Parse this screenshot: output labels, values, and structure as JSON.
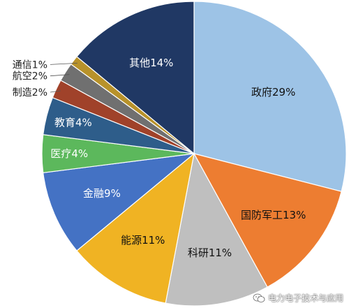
{
  "chart_data": {
    "type": "pie",
    "slices": [
      {
        "label": "政府29%",
        "value": 29,
        "color": "#9dc3e6",
        "text": "dark"
      },
      {
        "label": "国防军工13%",
        "value": 13,
        "color": "#ed7d31",
        "text": "dark"
      },
      {
        "label": "科研11%",
        "value": 11,
        "color": "#bfbfbf",
        "text": "dark"
      },
      {
        "label": "能源11%",
        "value": 11,
        "color": "#f0b323",
        "text": "dark"
      },
      {
        "label": "金融9%",
        "value": 9,
        "color": "#4472c4",
        "text": "light"
      },
      {
        "label": "医疗4%",
        "value": 4,
        "color": "#5cb85c",
        "text": "light"
      },
      {
        "label": "教育4%",
        "value": 4,
        "color": "#2e5d8a",
        "text": "light"
      },
      {
        "label": "制造2%",
        "value": 2,
        "color": "#a0422a",
        "text": "outside"
      },
      {
        "label": "航空2%",
        "value": 2,
        "color": "#707070",
        "text": "outside"
      },
      {
        "label": "通信1%",
        "value": 1,
        "color": "#b8922a",
        "text": "outside"
      },
      {
        "label": "其他14%",
        "value": 14,
        "color": "#203864",
        "text": "light"
      }
    ]
  },
  "watermark": {
    "text": "电力电子技术与应用",
    "icon": "wechat-icon"
  }
}
